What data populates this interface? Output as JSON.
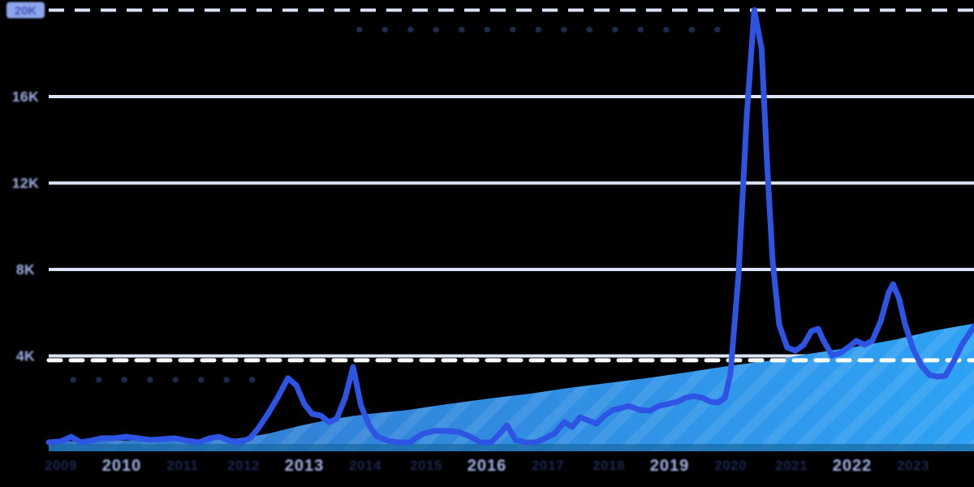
{
  "colors": {
    "background": "#000000",
    "line": "#2e54e4",
    "area_gradient_start": "#3377cd",
    "area_gradient_end": "#2ea2f4",
    "area_bottom_shade": "#17689f",
    "stripe": "rgba(255,255,255,0.09)",
    "gridline": "#dde4f7",
    "axis_label": "#a3b4e9",
    "axis_label_minor": "#1b2750",
    "badge_bg": "#8ea6ec",
    "badge_text": "#2f4ab8",
    "max_dashed_line": "#ffffff",
    "faint_dotted_line": "#1d2a4a"
  },
  "chart_data": {
    "type": "line",
    "title": "",
    "grid": "on",
    "legend": "none",
    "x_axis": {
      "range": [
        2008.8,
        2024.0
      ],
      "major_ticks": [
        {
          "label": "2010",
          "year": 2010
        },
        {
          "label": "2013",
          "year": 2013
        },
        {
          "label": "2016",
          "year": 2016
        },
        {
          "label": "2019",
          "year": 2019
        },
        {
          "label": "2022",
          "year": 2022
        }
      ],
      "minor_tick_years": [
        2009,
        2011,
        2012,
        2014,
        2015,
        2017,
        2018,
        2020,
        2021,
        2023
      ]
    },
    "y_axis": {
      "unit": "K",
      "range": [
        -0.45,
        20.5
      ],
      "ticks": [
        {
          "label": "20K",
          "value": 20,
          "line_style": "dashed",
          "badge": true
        },
        {
          "label": "16K",
          "value": 16,
          "line_style": "solid",
          "badge": false
        },
        {
          "label": "12K",
          "value": 12,
          "line_style": "solid",
          "badge": false
        },
        {
          "label": "8K",
          "value": 8,
          "line_style": "solid",
          "badge": false
        },
        {
          "label": "4K",
          "value": 4,
          "line_style": "solid",
          "badge": false
        }
      ]
    },
    "annotations": [
      {
        "name": "current-level-dashed-line",
        "type": "dashed-line",
        "value": 3.8,
        "x_from": 2008.8,
        "x_to": 2024.0,
        "color_key": "max_dashed_line"
      },
      {
        "name": "peak-reference-dotted-line",
        "type": "dotted-line",
        "value": 19.1,
        "x_from": 2013.9,
        "x_to": 2020.1,
        "color_key": "faint_dotted_line"
      },
      {
        "name": "early-reference-dotted-line",
        "type": "dotted-line",
        "value": 2.9,
        "x_from": 2009.2,
        "x_to": 2012.2,
        "color_key": "faint_dotted_line"
      }
    ],
    "series": [
      {
        "name": "cumulative-trend-area",
        "type": "area",
        "points": [
          [
            2008.8,
            0.05
          ],
          [
            2009.5,
            0.07
          ],
          [
            2010.5,
            0.1
          ],
          [
            2011.3,
            0.12
          ],
          [
            2011.9,
            0.18
          ],
          [
            2012.4,
            0.4
          ],
          [
            2012.9,
            0.75
          ],
          [
            2013.4,
            1.05
          ],
          [
            2014.0,
            1.3
          ],
          [
            2014.7,
            1.5
          ],
          [
            2015.3,
            1.75
          ],
          [
            2016.1,
            2.05
          ],
          [
            2016.7,
            2.25
          ],
          [
            2017.3,
            2.5
          ],
          [
            2018.0,
            2.75
          ],
          [
            2018.7,
            3.0
          ],
          [
            2019.3,
            3.25
          ],
          [
            2020.0,
            3.55
          ],
          [
            2020.7,
            3.8
          ],
          [
            2021.3,
            4.1
          ],
          [
            2022.0,
            4.4
          ],
          [
            2022.7,
            4.75
          ],
          [
            2023.3,
            5.15
          ],
          [
            2024.0,
            5.5
          ]
        ]
      },
      {
        "name": "interest-line",
        "type": "line",
        "points": [
          [
            2008.8,
            0
          ],
          [
            2009,
            0.05
          ],
          [
            2009.17,
            0.26
          ],
          [
            2009.33,
            0
          ],
          [
            2009.49,
            0.08
          ],
          [
            2009.67,
            0.19
          ],
          [
            2009.87,
            0.19
          ],
          [
            2010.07,
            0.26
          ],
          [
            2010.27,
            0.19
          ],
          [
            2010.47,
            0.11
          ],
          [
            2010.67,
            0.15
          ],
          [
            2010.87,
            0.19
          ],
          [
            2011.07,
            0.08
          ],
          [
            2011.27,
            0
          ],
          [
            2011.44,
            0.19
          ],
          [
            2011.6,
            0.26
          ],
          [
            2011.77,
            0.08
          ],
          [
            2011.93,
            0
          ],
          [
            2012.11,
            0.19
          ],
          [
            2012.24,
            0.64
          ],
          [
            2012.4,
            1.31
          ],
          [
            2012.56,
            2.07
          ],
          [
            2012.73,
            2.97
          ],
          [
            2012.87,
            2.63
          ],
          [
            2013,
            1.77
          ],
          [
            2013.13,
            1.31
          ],
          [
            2013.27,
            1.24
          ],
          [
            2013.4,
            0.94
          ],
          [
            2013.53,
            1.09
          ],
          [
            2013.67,
            2.07
          ],
          [
            2013.8,
            3.49
          ],
          [
            2013.93,
            1.69
          ],
          [
            2014.07,
            0.75
          ],
          [
            2014.2,
            0.26
          ],
          [
            2014.37,
            0.08
          ],
          [
            2014.53,
            0
          ],
          [
            2014.73,
            0
          ],
          [
            2014.93,
            0.38
          ],
          [
            2015.13,
            0.53
          ],
          [
            2015.33,
            0.53
          ],
          [
            2015.53,
            0.49
          ],
          [
            2015.73,
            0.26
          ],
          [
            2015.89,
            0
          ],
          [
            2016.07,
            0
          ],
          [
            2016.2,
            0.38
          ],
          [
            2016.33,
            0.79
          ],
          [
            2016.47,
            0.11
          ],
          [
            2016.64,
            0
          ],
          [
            2016.8,
            0
          ],
          [
            2016.96,
            0.19
          ],
          [
            2017.11,
            0.41
          ],
          [
            2017.27,
            0.94
          ],
          [
            2017.4,
            0.71
          ],
          [
            2017.53,
            1.16
          ],
          [
            2017.67,
            1.01
          ],
          [
            2017.8,
            0.86
          ],
          [
            2017.93,
            1.24
          ],
          [
            2018.07,
            1.5
          ],
          [
            2018.2,
            1.58
          ],
          [
            2018.33,
            1.69
          ],
          [
            2018.51,
            1.5
          ],
          [
            2018.67,
            1.46
          ],
          [
            2018.83,
            1.69
          ],
          [
            2018.96,
            1.77
          ],
          [
            2019.13,
            1.88
          ],
          [
            2019.27,
            2.07
          ],
          [
            2019.4,
            2.14
          ],
          [
            2019.53,
            2.07
          ],
          [
            2019.67,
            1.88
          ],
          [
            2019.8,
            1.84
          ],
          [
            2019.91,
            2.07
          ],
          [
            2020,
            3.19
          ],
          [
            2020.13,
            7.7
          ],
          [
            2020.27,
            15.21
          ],
          [
            2020.39,
            20
          ],
          [
            2020.51,
            18.22
          ],
          [
            2020.6,
            12.96
          ],
          [
            2020.69,
            8.45
          ],
          [
            2020.8,
            5.45
          ],
          [
            2020.93,
            4.39
          ],
          [
            2021.07,
            4.24
          ],
          [
            2021.2,
            4.51
          ],
          [
            2021.33,
            5.15
          ],
          [
            2021.44,
            5.26
          ],
          [
            2021.53,
            4.7
          ],
          [
            2021.67,
            4.02
          ],
          [
            2021.8,
            4.13
          ],
          [
            2021.93,
            4.39
          ],
          [
            2022.07,
            4.7
          ],
          [
            2022.2,
            4.51
          ],
          [
            2022.33,
            4.7
          ],
          [
            2022.47,
            5.63
          ],
          [
            2022.6,
            6.95
          ],
          [
            2022.67,
            7.32
          ],
          [
            2022.77,
            6.65
          ],
          [
            2022.87,
            5.45
          ],
          [
            2023,
            4.32
          ],
          [
            2023.13,
            3.57
          ],
          [
            2023.27,
            3.12
          ],
          [
            2023.4,
            3.04
          ],
          [
            2023.53,
            3.08
          ],
          [
            2023.67,
            3.76
          ],
          [
            2023.8,
            4.51
          ],
          [
            2024,
            5.37
          ]
        ]
      }
    ]
  }
}
